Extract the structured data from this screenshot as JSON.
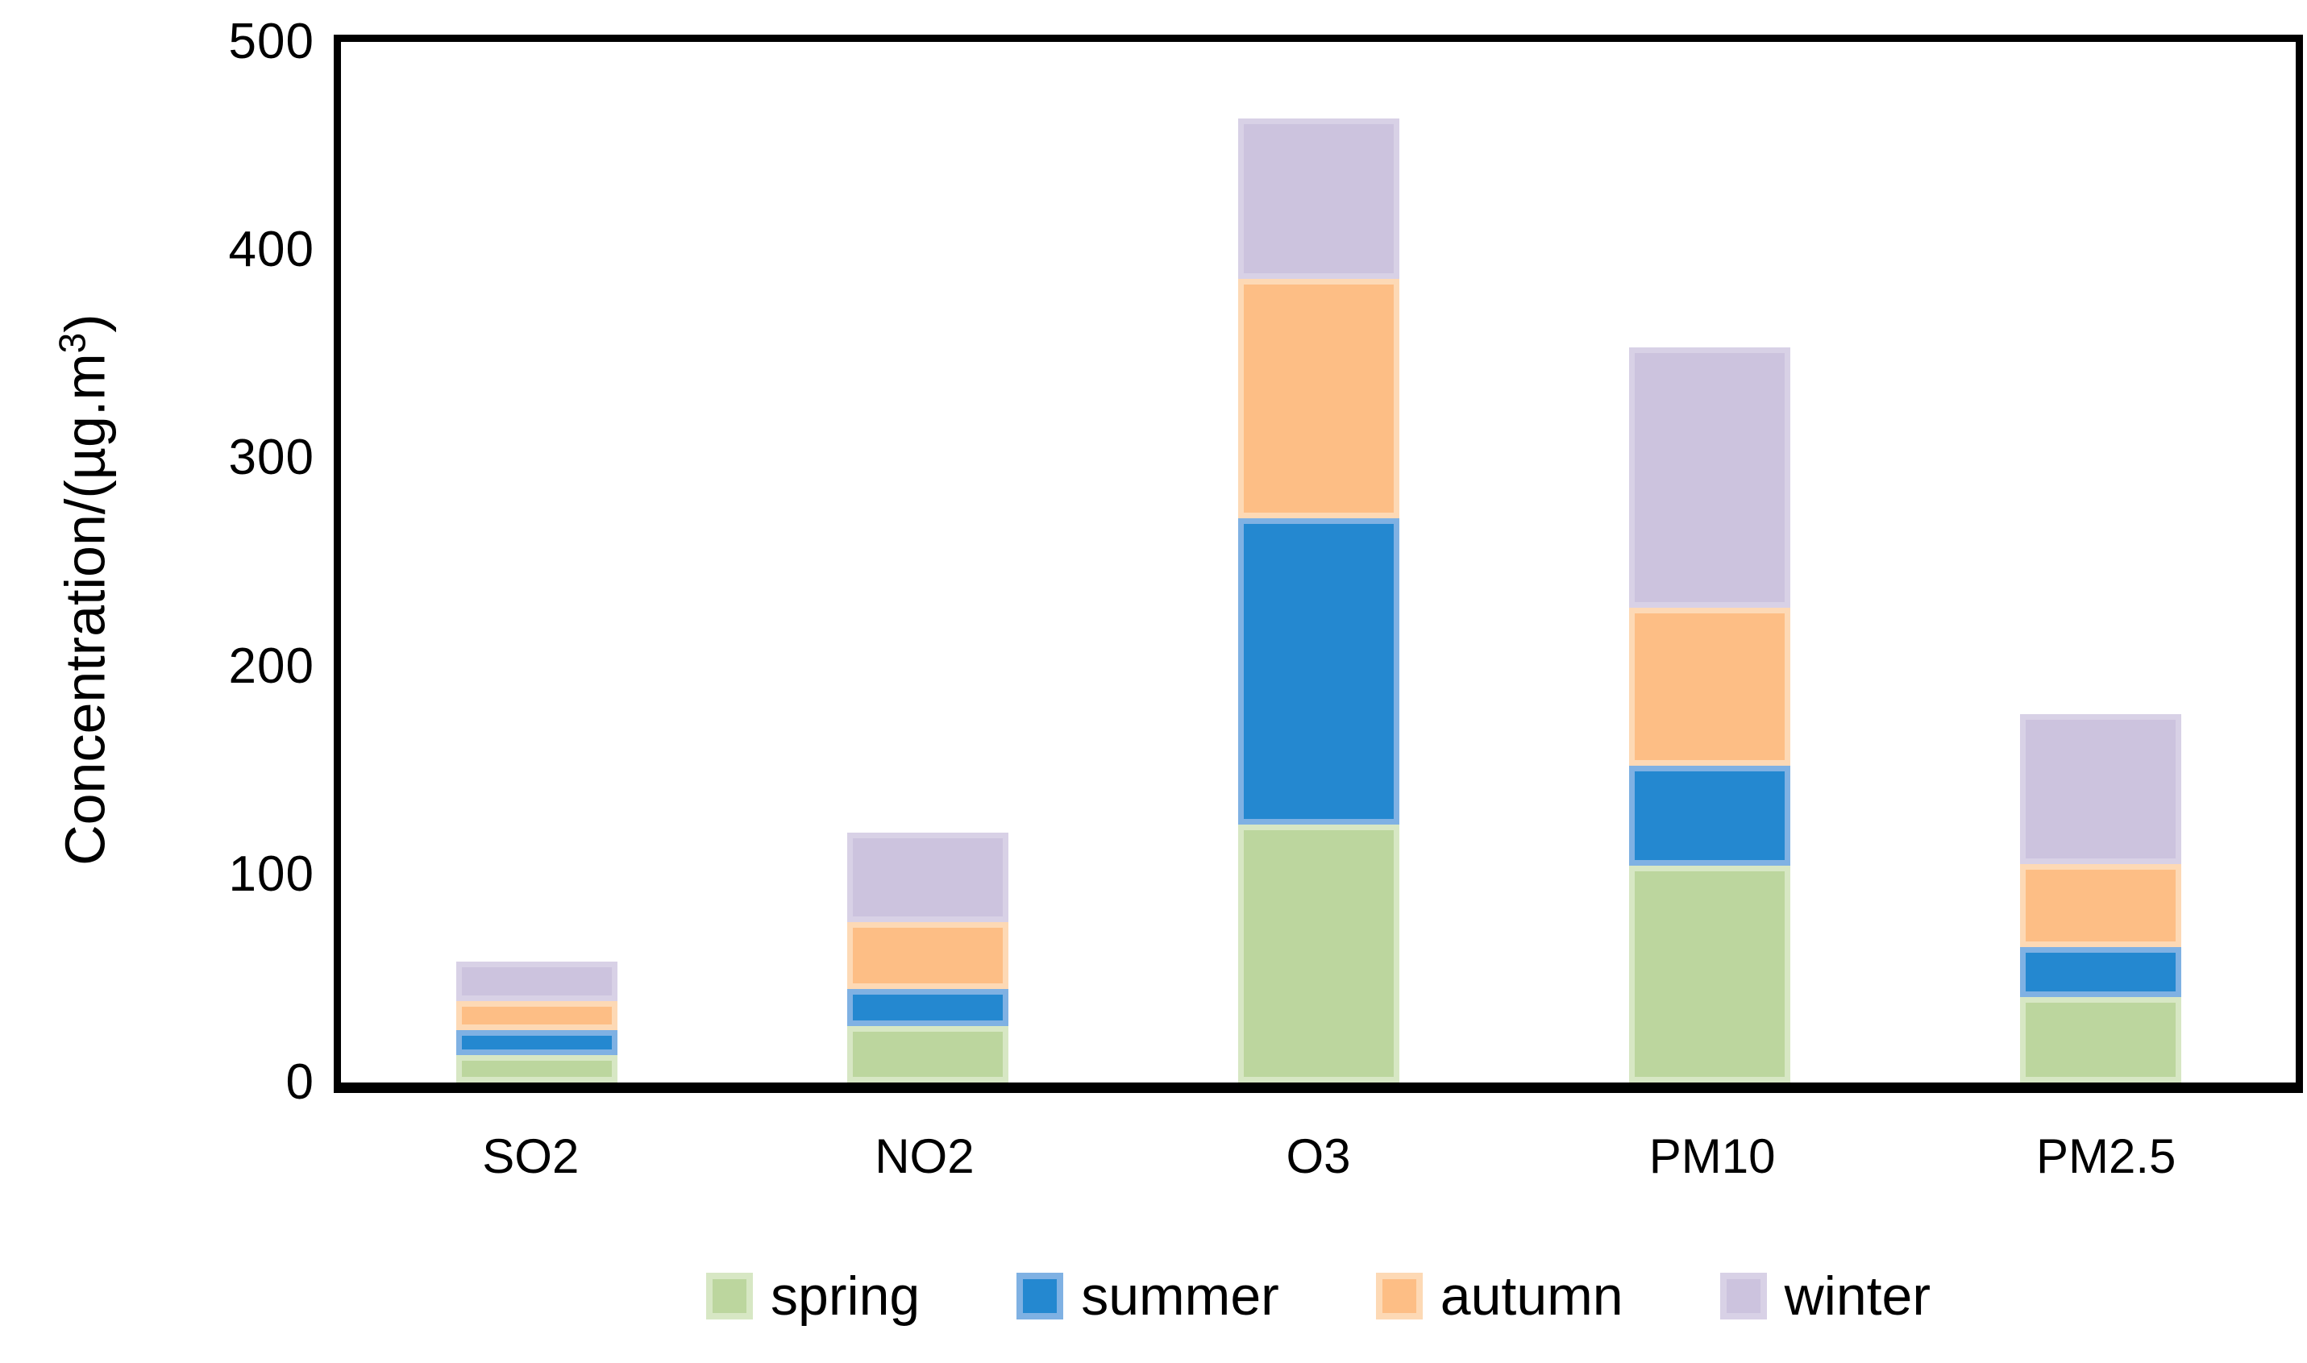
{
  "chart_data": {
    "type": "bar",
    "stacked": true,
    "title": "",
    "ylabel_prefix": "Concentration/(µg.m",
    "ylabel_sup": "3",
    "ylabel_suffix": ")",
    "categories": [
      "SO2",
      "NO2",
      "O3",
      "PM10",
      "PM2.5"
    ],
    "series": [
      {
        "name": "spring",
        "fill": "#bcd69e",
        "border": "#d7e7c4",
        "values": [
          13,
          27,
          124,
          104,
          41
        ]
      },
      {
        "name": "summer",
        "fill": "#2488d0",
        "border": "#7fb1e3",
        "values": [
          12,
          18,
          147,
          48,
          24
        ]
      },
      {
        "name": "autumn",
        "fill": "#fdbe85",
        "border": "#fdd9b5",
        "values": [
          14,
          32,
          115,
          76,
          40
        ]
      },
      {
        "name": "winter",
        "fill": "#ccc3de",
        "border": "#d8d1e6",
        "values": [
          19,
          43,
          77,
          125,
          72
        ]
      }
    ],
    "yticks": [
      0,
      100,
      200,
      300,
      400,
      500
    ],
    "ylim": [
      0,
      500
    ],
    "grid": false,
    "legend_position": "bottom",
    "axis_color": "#000000",
    "background_color": "#ffffff"
  }
}
